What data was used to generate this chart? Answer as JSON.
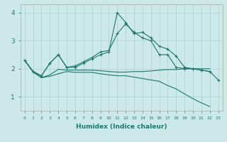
{
  "xlabel": "Humidex (Indice chaleur)",
  "xlim": [
    -0.5,
    23.5
  ],
  "ylim": [
    0.5,
    4.3
  ],
  "yticks": [
    1,
    2,
    3,
    4
  ],
  "xticks": [
    0,
    1,
    2,
    3,
    4,
    5,
    6,
    7,
    8,
    9,
    10,
    11,
    12,
    13,
    14,
    15,
    16,
    17,
    18,
    19,
    20,
    21,
    22,
    23
  ],
  "bg_color": "#cce8e8",
  "grid_color": "#b0d4d4",
  "line_color": "#1a7a6e",
  "series_with_markers": [
    [
      2.3,
      1.9,
      1.75,
      2.2,
      2.5,
      2.05,
      2.05,
      2.2,
      2.35,
      2.5,
      2.6,
      4.0,
      3.65,
      3.25,
      3.3,
      3.1,
      2.8,
      2.7,
      2.45,
      2.05,
      2.0,
      1.95,
      1.9,
      1.6
    ],
    [
      2.3,
      1.9,
      1.75,
      2.2,
      2.5,
      2.05,
      2.1,
      2.25,
      2.4,
      2.6,
      2.65,
      3.25,
      3.6,
      3.3,
      3.1,
      3.0,
      2.5,
      2.5,
      2.05,
      2.0,
      2.0,
      1.95,
      1.9,
      null
    ]
  ],
  "series_no_markers": [
    [
      2.3,
      1.88,
      1.68,
      1.78,
      1.98,
      1.95,
      1.95,
      1.95,
      1.95,
      1.93,
      1.9,
      1.88,
      1.88,
      1.9,
      1.9,
      1.92,
      1.95,
      1.97,
      1.97,
      2.0,
      2.0,
      2.0,
      2.0,
      null
    ],
    [
      2.3,
      1.9,
      1.68,
      1.73,
      1.82,
      1.9,
      1.87,
      1.87,
      1.87,
      1.82,
      1.78,
      1.75,
      1.75,
      1.7,
      1.65,
      1.6,
      1.55,
      1.4,
      1.28,
      1.1,
      0.93,
      0.78,
      0.65,
      null
    ]
  ]
}
